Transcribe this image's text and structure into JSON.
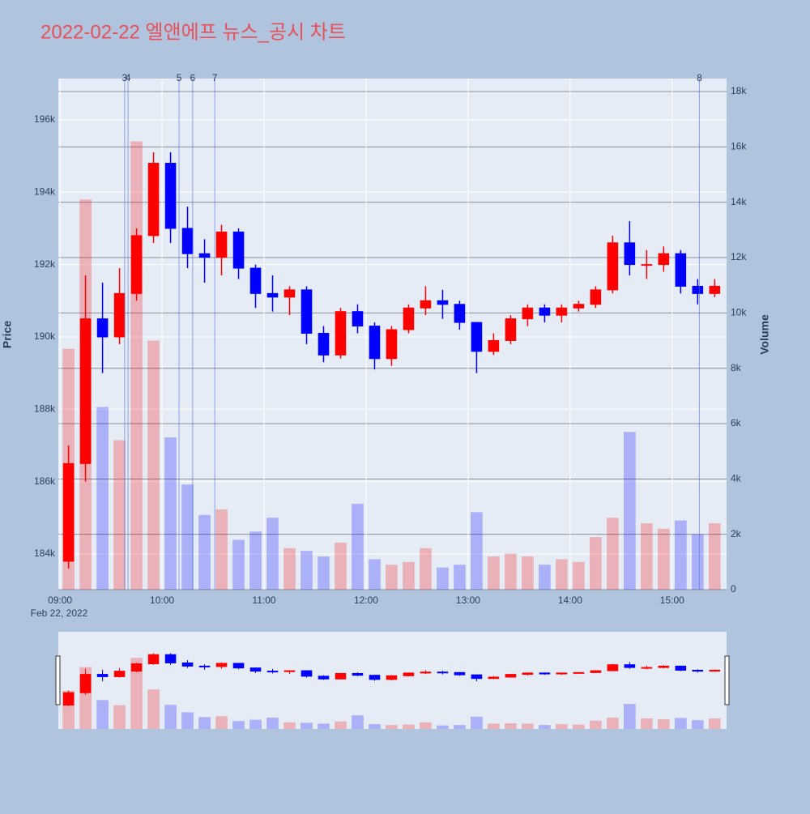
{
  "chart_data": {
    "type": "candlestick",
    "title": "2022-02-22 엘앤에프 뉴스_공시 차트",
    "y_label": "Price",
    "y2_label": "Volume",
    "x_date_label": "Feb 22, 2022",
    "up_color": "#ff0000",
    "down_color": "#0000ff",
    "grid": true,
    "xlim": [
      "08:59",
      "15:32"
    ],
    "xticks": [
      "09:00",
      "10:00",
      "11:00",
      "12:00",
      "13:00",
      "14:00",
      "15:00"
    ],
    "ylim": [
      183015,
      197140
    ],
    "yticks": [
      {
        "value": 184000,
        "label": "184k"
      },
      {
        "value": 186000,
        "label": "186k"
      },
      {
        "value": 188000,
        "label": "188k"
      },
      {
        "value": 190000,
        "label": "190k"
      },
      {
        "value": 192000,
        "label": "192k"
      },
      {
        "value": 194000,
        "label": "194k"
      },
      {
        "value": 196000,
        "label": "196k"
      }
    ],
    "y2lim": [
      0,
      18470
    ],
    "y2ticks": [
      0,
      {
        "value": 2000,
        "label": "2k"
      },
      {
        "value": 4000,
        "label": "4k"
      },
      {
        "value": 6000,
        "label": "6k"
      },
      {
        "value": 8000,
        "label": "8k"
      },
      {
        "value": 10000,
        "label": "10k"
      },
      {
        "value": 12000,
        "label": "12k"
      },
      {
        "value": 14000,
        "label": "14k"
      },
      {
        "value": 16000,
        "label": "16k"
      },
      {
        "value": 18000,
        "label": "18k"
      }
    ],
    "x": [
      "09:00",
      "09:10",
      "09:20",
      "09:30",
      "09:40",
      "09:50",
      "10:00",
      "10:10",
      "10:20",
      "10:30",
      "10:40",
      "10:50",
      "11:00",
      "11:10",
      "11:20",
      "11:30",
      "11:40",
      "11:50",
      "12:00",
      "12:10",
      "12:20",
      "12:30",
      "12:40",
      "12:50",
      "13:00",
      "13:10",
      "13:20",
      "13:30",
      "13:40",
      "13:50",
      "14:00",
      "14:10",
      "14:20",
      "14:30",
      "14:40",
      "14:50",
      "15:00",
      "15:10",
      "15:20"
    ],
    "open": [
      183800,
      186500,
      190500,
      190000,
      191200,
      192800,
      194800,
      193000,
      192300,
      192200,
      192900,
      191900,
      191200,
      191100,
      191300,
      190100,
      189500,
      190700,
      190300,
      189400,
      190200,
      190800,
      191000,
      190900,
      190400,
      189600,
      189900,
      190500,
      190800,
      190600,
      190800,
      190900,
      191300,
      192600,
      192000,
      192000,
      192300,
      191400,
      191200
    ],
    "high": [
      187000,
      191700,
      191500,
      191900,
      193000,
      195100,
      195100,
      193600,
      192700,
      193100,
      193000,
      192000,
      191700,
      191400,
      191400,
      190300,
      190800,
      190900,
      190400,
      190300,
      190900,
      191400,
      191300,
      191000,
      190400,
      190100,
      190600,
      190900,
      190900,
      190900,
      191000,
      191400,
      192800,
      193200,
      192400,
      192500,
      192400,
      191600,
      191600
    ],
    "low": [
      183600,
      186000,
      189000,
      189800,
      191000,
      192600,
      192600,
      191900,
      191500,
      191700,
      191600,
      190800,
      190700,
      190600,
      189800,
      189300,
      189400,
      190100,
      189100,
      189200,
      190100,
      190600,
      190500,
      190200,
      189000,
      189500,
      189800,
      190300,
      190400,
      190400,
      190700,
      190800,
      191200,
      191700,
      191600,
      191800,
      191200,
      190900,
      191100
    ],
    "close": [
      186500,
      190500,
      190000,
      191200,
      192800,
      194800,
      193000,
      192300,
      192200,
      192900,
      191900,
      191200,
      191100,
      191300,
      190100,
      189500,
      190700,
      190300,
      189400,
      190200,
      190800,
      191000,
      190900,
      190400,
      189600,
      189900,
      190500,
      190800,
      190600,
      190800,
      190900,
      191300,
      192600,
      192000,
      192000,
      192300,
      191400,
      191200,
      191400
    ],
    "volume": [
      8700,
      14100,
      6600,
      5400,
      16200,
      9000,
      5500,
      3800,
      2700,
      2900,
      1800,
      2100,
      2600,
      1500,
      1400,
      1200,
      1700,
      3100,
      1100,
      900,
      1000,
      1500,
      800,
      900,
      2800,
      1200,
      1300,
      1200,
      900,
      1100,
      1000,
      1900,
      2600,
      5700,
      2400,
      2200,
      2500,
      2000,
      2400
    ],
    "news": [
      {
        "label": "3",
        "time": "09:38"
      },
      {
        "label": "4",
        "time": "09:40"
      },
      {
        "label": "5",
        "time": "10:10"
      },
      {
        "label": "6",
        "time": "10:18"
      },
      {
        "label": "7",
        "time": "10:31"
      },
      {
        "label": "8",
        "time": "15:16"
      }
    ]
  }
}
